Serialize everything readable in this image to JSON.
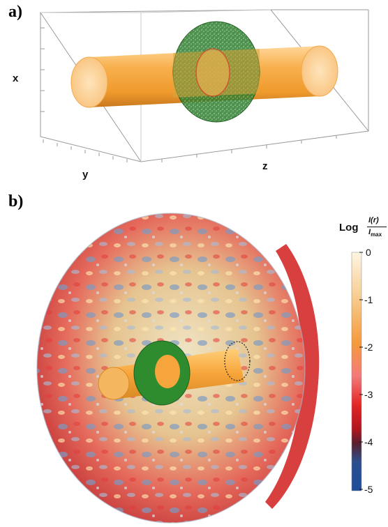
{
  "panel_a": {
    "label": "a)",
    "axes": {
      "x": "x",
      "y": "y",
      "z": "z"
    }
  },
  "panel_b": {
    "label": "b)",
    "colorbar": {
      "title_prefix": "Log",
      "numerator": "I(r)",
      "denominator": "I",
      "denominator_sub": "max",
      "ticks": [
        "0",
        "-1",
        "-2",
        "-3",
        "-4",
        "-5"
      ],
      "colors": [
        "#fdf6e3",
        "#f7c98a",
        "#f59a3a",
        "#f37a7a",
        "#e32525",
        "#b2161f",
        "#5a1e2d",
        "#2b4f8f",
        "#1d4d9a"
      ]
    }
  },
  "colors": {
    "cylinder": "#f5a53c",
    "disc": "#2e8b2e",
    "aperture_ring": "#e0402a"
  }
}
